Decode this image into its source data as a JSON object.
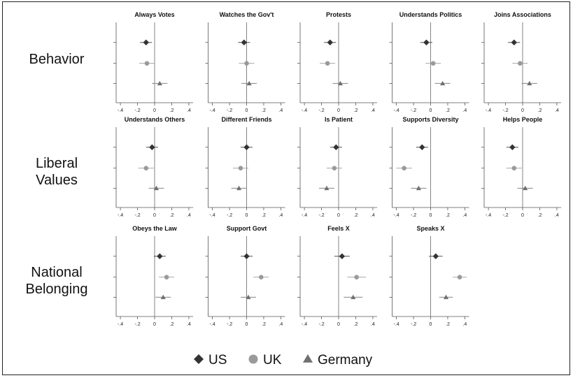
{
  "chart_data": {
    "type": "scatter",
    "description_kind": "small-multiples coefficient plot with error bars",
    "x_ticks": [
      "-.4",
      "-.2",
      "0",
      ".2",
      ".4"
    ],
    "xlim": [
      -0.45,
      0.45
    ],
    "grid": false,
    "legend": {
      "placement": "bottom-center",
      "entries": [
        {
          "label": "US",
          "marker": "diamond",
          "color": "#333333"
        },
        {
          "label": "UK",
          "marker": "circle",
          "color": "#9a9a9a"
        },
        {
          "label": "Germany",
          "marker": "triangle",
          "color": "#707070"
        }
      ]
    },
    "series_colors": {
      "US": "#333333",
      "UK": "#9a9a9a",
      "Germany": "#707070"
    },
    "groups": [
      {
        "label": "Behavior",
        "panels": [
          {
            "title": "Always Votes",
            "points": [
              {
                "series": "US",
                "est": -0.1,
                "lo": -0.17,
                "hi": -0.03
              },
              {
                "series": "UK",
                "est": -0.09,
                "lo": -0.18,
                "hi": 0.0
              },
              {
                "series": "Germany",
                "est": 0.06,
                "lo": -0.03,
                "hi": 0.15
              }
            ]
          },
          {
            "title": "Watches the Gov't",
            "points": [
              {
                "series": "US",
                "est": -0.03,
                "lo": -0.1,
                "hi": 0.04
              },
              {
                "series": "UK",
                "est": 0.0,
                "lo": -0.09,
                "hi": 0.09
              },
              {
                "series": "Germany",
                "est": 0.03,
                "lo": -0.06,
                "hi": 0.12
              }
            ]
          },
          {
            "title": "Protests",
            "points": [
              {
                "series": "US",
                "est": -0.1,
                "lo": -0.17,
                "hi": -0.03
              },
              {
                "series": "UK",
                "est": -0.13,
                "lo": -0.22,
                "hi": -0.04
              },
              {
                "series": "Germany",
                "est": 0.02,
                "lo": -0.07,
                "hi": 0.11
              }
            ]
          },
          {
            "title": "Understands Politics",
            "points": [
              {
                "series": "US",
                "est": -0.05,
                "lo": -0.12,
                "hi": 0.02
              },
              {
                "series": "UK",
                "est": 0.03,
                "lo": -0.06,
                "hi": 0.12
              },
              {
                "series": "Germany",
                "est": 0.14,
                "lo": 0.05,
                "hi": 0.23
              }
            ]
          },
          {
            "title": "Joins Associations",
            "points": [
              {
                "series": "US",
                "est": -0.1,
                "lo": -0.17,
                "hi": -0.03
              },
              {
                "series": "UK",
                "est": -0.03,
                "lo": -0.12,
                "hi": 0.06
              },
              {
                "series": "Germany",
                "est": 0.08,
                "lo": -0.01,
                "hi": 0.17
              }
            ]
          }
        ]
      },
      {
        "label": "Liberal Values",
        "panels": [
          {
            "title": "Understands Others",
            "points": [
              {
                "series": "US",
                "est": -0.03,
                "lo": -0.1,
                "hi": 0.04
              },
              {
                "series": "UK",
                "est": -0.1,
                "lo": -0.19,
                "hi": -0.01
              },
              {
                "series": "Germany",
                "est": 0.02,
                "lo": -0.07,
                "hi": 0.11
              }
            ]
          },
          {
            "title": "Different Friends",
            "points": [
              {
                "series": "US",
                "est": 0.0,
                "lo": -0.07,
                "hi": 0.07
              },
              {
                "series": "UK",
                "est": -0.07,
                "lo": -0.16,
                "hi": 0.02
              },
              {
                "series": "Germany",
                "est": -0.09,
                "lo": -0.18,
                "hi": 0.0
              }
            ]
          },
          {
            "title": "Is Patient",
            "points": [
              {
                "series": "US",
                "est": -0.03,
                "lo": -0.1,
                "hi": 0.04
              },
              {
                "series": "UK",
                "est": -0.05,
                "lo": -0.14,
                "hi": 0.04
              },
              {
                "series": "Germany",
                "est": -0.14,
                "lo": -0.23,
                "hi": -0.05
              }
            ]
          },
          {
            "title": "Supports Diversity",
            "points": [
              {
                "series": "US",
                "est": -0.1,
                "lo": -0.17,
                "hi": -0.03
              },
              {
                "series": "UK",
                "est": -0.31,
                "lo": -0.4,
                "hi": -0.22
              },
              {
                "series": "Germany",
                "est": -0.14,
                "lo": -0.23,
                "hi": -0.05
              }
            ]
          },
          {
            "title": "Helps People",
            "points": [
              {
                "series": "US",
                "est": -0.12,
                "lo": -0.19,
                "hi": -0.05
              },
              {
                "series": "UK",
                "est": -0.1,
                "lo": -0.19,
                "hi": -0.01
              },
              {
                "series": "Germany",
                "est": 0.03,
                "lo": -0.06,
                "hi": 0.12
              }
            ]
          }
        ]
      },
      {
        "label": "National Belonging",
        "panels": [
          {
            "title": "Obeys the Law",
            "points": [
              {
                "series": "US",
                "est": 0.06,
                "lo": -0.01,
                "hi": 0.13
              },
              {
                "series": "UK",
                "est": 0.14,
                "lo": 0.05,
                "hi": 0.23
              },
              {
                "series": "Germany",
                "est": 0.1,
                "lo": 0.01,
                "hi": 0.19
              }
            ]
          },
          {
            "title": "Support Govt",
            "points": [
              {
                "series": "US",
                "est": 0.0,
                "lo": -0.07,
                "hi": 0.07
              },
              {
                "series": "UK",
                "est": 0.17,
                "lo": 0.08,
                "hi": 0.26
              },
              {
                "series": "Germany",
                "est": 0.02,
                "lo": -0.07,
                "hi": 0.11
              }
            ]
          },
          {
            "title": "Feels X",
            "points": [
              {
                "series": "US",
                "est": 0.04,
                "lo": -0.05,
                "hi": 0.13
              },
              {
                "series": "UK",
                "est": 0.21,
                "lo": 0.1,
                "hi": 0.32
              },
              {
                "series": "Germany",
                "est": 0.17,
                "lo": 0.06,
                "hi": 0.28
              }
            ]
          },
          {
            "title": "Speaks X",
            "points": [
              {
                "series": "US",
                "est": 0.06,
                "lo": -0.02,
                "hi": 0.14
              },
              {
                "series": "UK",
                "est": 0.34,
                "lo": 0.26,
                "hi": 0.42
              },
              {
                "series": "Germany",
                "est": 0.18,
                "lo": 0.1,
                "hi": 0.26
              }
            ]
          }
        ]
      }
    ]
  },
  "row_label_lines": [
    [
      "Behavior"
    ],
    [
      "Liberal",
      "Values"
    ],
    [
      "National",
      "Belonging"
    ]
  ]
}
